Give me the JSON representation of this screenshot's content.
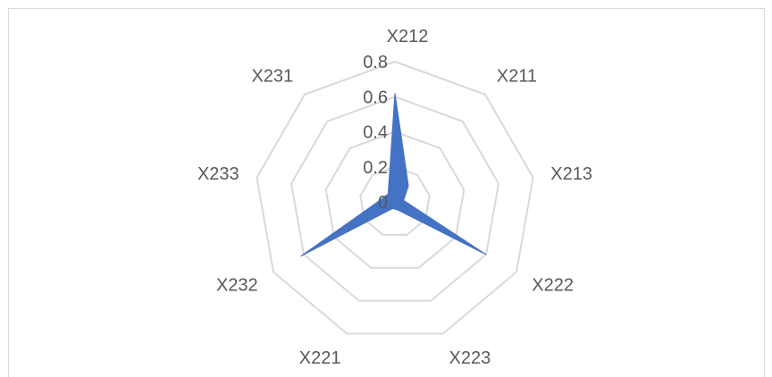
{
  "chart_data": {
    "type": "radar",
    "title": "",
    "categories": [
      "X212",
      "X211",
      "X213",
      "X222",
      "X223",
      "X221",
      "X232",
      "X233",
      "X231"
    ],
    "series": [
      {
        "values": [
          0.62,
          0.12,
          0.05,
          0.6,
          0.05,
          0.04,
          0.62,
          0.08,
          0.06
        ]
      }
    ],
    "r_range": [
      0,
      0.8
    ],
    "r_ticks": [
      "0",
      "0.2",
      "0.4",
      "0.6",
      "0.8"
    ],
    "grid": true,
    "colors": {
      "series": "#4472c4",
      "grid": "#d9d9d9",
      "text": "#595959",
      "frame": "#d9d9d9"
    }
  }
}
